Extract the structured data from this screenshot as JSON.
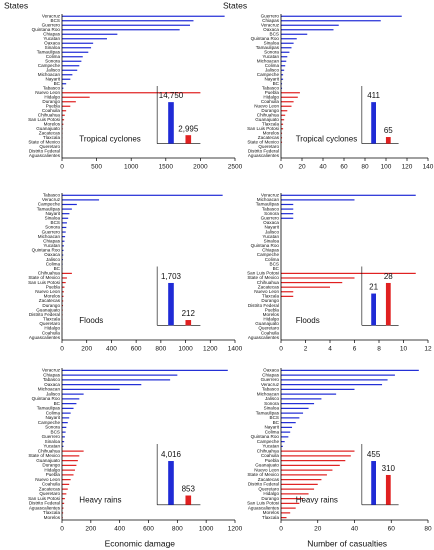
{
  "chart_data": [
    {
      "type": "bar",
      "ylabel": "States",
      "label": "Tropical cyclones",
      "categories": [
        "Veracruz",
        "BCS",
        "Guerrero",
        "Quintana Roo",
        "Chiapas",
        "Yucatan",
        "Oaxaca",
        "Sinaloa",
        "Tamaulipas",
        "Colima",
        "Sonora",
        "Campeche",
        "Jalisco",
        "Michoacan",
        "Nayarit",
        "BC",
        "Tabasco",
        "Nuevo Leon",
        "Hidalgo",
        "Durango",
        "Puebla",
        "Coahuila",
        "Chihuahua",
        "San Luis Potosi",
        "Morelos",
        "Guanajuato",
        "Zacatecas",
        "Tlaxcala",
        "State of Mexico",
        "Queretaro",
        "Distrito Federal",
        "Aguascalientes"
      ],
      "series": [
        {
          "color": "#1f2bd6",
          "values": [
            2350,
            1900,
            1850,
            1700,
            800,
            650,
            450,
            420,
            380,
            300,
            280,
            250,
            220,
            150,
            120,
            60,
            20,
            null,
            null,
            null,
            null,
            null,
            null,
            null,
            null,
            null,
            null,
            null,
            null,
            null,
            null,
            null
          ]
        },
        {
          "color": "#e02020",
          "values": [
            null,
            null,
            null,
            null,
            null,
            null,
            null,
            null,
            null,
            null,
            null,
            null,
            null,
            null,
            null,
            null,
            null,
            2000,
            400,
            200,
            120,
            60,
            40,
            30,
            20,
            10,
            8,
            5,
            5,
            3,
            2,
            1
          ]
        }
      ],
      "xlim": [
        0,
        2500
      ],
      "xticks": [
        0,
        500,
        1000,
        1500,
        2000,
        2500
      ],
      "inset": {
        "values": [
          14750,
          2995
        ],
        "value_labels": [
          "14,750",
          "2,995"
        ],
        "colors": [
          "#1f2bd6",
          "#e02020"
        ]
      }
    },
    {
      "type": "bar",
      "ylabel": "States",
      "label": "Tropical cyclones",
      "categories": [
        "Guerrero",
        "Chiapas",
        "Veracruz",
        "Oaxaca",
        "BCS",
        "Quintana Roo",
        "Sinaloa",
        "Tamaulipas",
        "Sonora",
        "Yucatan",
        "Michoacan",
        "Colima",
        "Jalisco",
        "Campeche",
        "Nayarit",
        "BC",
        "Tabasco",
        "Puebla",
        "Hidalgo",
        "Coahuila",
        "Nuevo Leon",
        "Durango",
        "Chihuahua",
        "Guanajuato",
        "Tlaxcala",
        "San Luis Potosi",
        "Morelos",
        "Zacatecas",
        "State of Mexico",
        "Queretaro",
        "Distrito Federal",
        "Aguascalientes"
      ],
      "series": [
        {
          "color": "#1f2bd6",
          "values": [
            115,
            95,
            55,
            50,
            25,
            15,
            12,
            10,
            8,
            6,
            5,
            4,
            3,
            2,
            2,
            1,
            1,
            null,
            null,
            null,
            null,
            null,
            null,
            null,
            null,
            null,
            null,
            null,
            null,
            null,
            null,
            null
          ]
        },
        {
          "color": "#e02020",
          "values": [
            null,
            null,
            null,
            null,
            null,
            null,
            null,
            null,
            null,
            null,
            null,
            null,
            null,
            null,
            null,
            null,
            null,
            18,
            16,
            12,
            10,
            6,
            4,
            3,
            2,
            2,
            1,
            1,
            1,
            0,
            0,
            0
          ]
        }
      ],
      "xlim": [
        0,
        140
      ],
      "xticks": [
        0,
        20,
        40,
        60,
        80,
        100,
        120,
        140
      ],
      "inset": {
        "values": [
          411,
          65
        ],
        "colors": [
          "#1f2bd6",
          "#e02020"
        ]
      }
    },
    {
      "type": "bar",
      "label": "Floods",
      "categories": [
        "Tabasco",
        "Veracruz",
        "Campeche",
        "Tamaulipas",
        "Nayarit",
        "Sinaloa",
        "BCS",
        "Sonora",
        "Guerrero",
        "Michoacan",
        "Chiapas",
        "Yucatan",
        "Quintana Roo",
        "Oaxaca",
        "Jalisco",
        "Colima",
        "BC",
        "Chihuahua",
        "State of Mexico",
        "San Luis Potosi",
        "Puebla",
        "Nuevo Leon",
        "Morelos",
        "Zacatecas",
        "Durango",
        "Guanajuato",
        "Distrito Federal",
        "Tlaxcala",
        "Queretaro",
        "Hidalgo",
        "Coahuila",
        "Aguascalientes"
      ],
      "series": [
        {
          "color": "#1f2bd6",
          "values": [
            1300,
            300,
            120,
            80,
            60,
            50,
            40,
            35,
            30,
            25,
            20,
            15,
            12,
            10,
            8,
            5,
            3,
            null,
            null,
            null,
            null,
            null,
            null,
            null,
            null,
            null,
            null,
            null,
            null,
            null,
            null,
            null
          ]
        },
        {
          "color": "#e02020",
          "values": [
            null,
            null,
            null,
            null,
            null,
            null,
            null,
            null,
            null,
            null,
            null,
            null,
            null,
            null,
            null,
            null,
            null,
            80,
            40,
            30,
            20,
            15,
            12,
            10,
            8,
            6,
            5,
            4,
            3,
            2,
            1,
            1
          ]
        }
      ],
      "xlim": [
        0,
        1400
      ],
      "xticks": [
        0,
        200,
        400,
        600,
        800,
        1000,
        1200,
        1400
      ],
      "inset": {
        "values": [
          1703,
          212
        ],
        "value_labels": [
          "1,703",
          "212"
        ],
        "colors": [
          "#1f2bd6",
          "#e02020"
        ]
      }
    },
    {
      "type": "bar",
      "label": "Floods",
      "categories": [
        "Veracruz",
        "Michoacan",
        "Tamaulipas",
        "Tabasco",
        "Sonora",
        "Guerrero",
        "Oaxaca",
        "Nayarit",
        "Jalisco",
        "Yucatan",
        "Sinaloa",
        "Quintana Roo",
        "Chiapas",
        "Campeche",
        "Colima",
        "BCS",
        "BC",
        "San Luis Potosi",
        "State of Mexico",
        "Chihuahua",
        "Zacatecas",
        "Nuevo Leon",
        "Tlaxcala",
        "Durango",
        "Distrito Federal",
        "Puebla",
        "Morelos",
        "Hidalgo",
        "Guanajuato",
        "Queretaro",
        "Coahuila",
        "Aguascalientes"
      ],
      "series": [
        {
          "color": "#1f2bd6",
          "values": [
            11,
            6,
            1,
            1,
            1,
            1,
            0,
            0,
            0,
            0,
            0,
            0,
            0,
            0,
            0,
            0,
            0,
            null,
            null,
            null,
            null,
            null,
            null,
            null,
            null,
            null,
            null,
            null,
            null,
            null,
            null,
            null
          ]
        },
        {
          "color": "#e02020",
          "values": [
            null,
            null,
            null,
            null,
            null,
            null,
            null,
            null,
            null,
            null,
            null,
            null,
            null,
            null,
            null,
            null,
            null,
            11,
            6,
            5,
            4,
            1,
            1,
            0,
            0,
            0,
            0,
            0,
            0,
            0,
            0,
            0
          ]
        }
      ],
      "xlim": [
        0,
        12
      ],
      "xticks": [
        0,
        2,
        4,
        6,
        8,
        10,
        12
      ],
      "inset": {
        "values": [
          21,
          28
        ],
        "colors": [
          "#1f2bd6",
          "#e02020"
        ]
      }
    },
    {
      "type": "bar",
      "label": "Heavy rains",
      "xlabel": "Economic damage",
      "categories": [
        "Veracruz",
        "Chiapas",
        "Tabasco",
        "Oaxaca",
        "Michoacan",
        "Jalisco",
        "Quintana Roo",
        "BC",
        "Tamaulipas",
        "Colima",
        "Nayarit",
        "Campeche",
        "Sonora",
        "BCS",
        "Guerrero",
        "Sinaloa",
        "Yucatan",
        "Chihuahua",
        "State of Mexico",
        "Guanajuato",
        "Durango",
        "Hidalgo",
        "Puebla",
        "Nuevo Leon",
        "Coahuila",
        "Zacatecas",
        "Queretaro",
        "San Luis Potosi",
        "Distrito Federal",
        "Aguascalientes",
        "Tlaxcala",
        "Morelos"
      ],
      "series": [
        {
          "color": "#1f2bd6",
          "values": [
            1150,
            800,
            750,
            550,
            400,
            150,
            120,
            100,
            80,
            60,
            50,
            40,
            30,
            25,
            20,
            15,
            10,
            null,
            null,
            null,
            null,
            null,
            null,
            null,
            null,
            null,
            null,
            null,
            null,
            null,
            null,
            null
          ]
        },
        {
          "color": "#e02020",
          "values": [
            null,
            null,
            null,
            null,
            null,
            null,
            null,
            null,
            null,
            null,
            null,
            null,
            null,
            null,
            null,
            null,
            null,
            150,
            120,
            110,
            100,
            90,
            80,
            60,
            50,
            40,
            30,
            20,
            15,
            10,
            8,
            5
          ]
        }
      ],
      "xlim": [
        0,
        1200
      ],
      "xticks": [
        0,
        200,
        400,
        600,
        800,
        1000,
        1200
      ],
      "inset": {
        "values": [
          4016,
          853
        ],
        "value_labels": [
          "4,016",
          "853"
        ],
        "colors": [
          "#1f2bd6",
          "#e02020"
        ]
      }
    },
    {
      "type": "bar",
      "label": "Heavy rains",
      "xlabel": "Number of casualties",
      "categories": [
        "Oaxaca",
        "Chiapas",
        "Guerrero",
        "Veracruz",
        "Tabasco",
        "Michoacan",
        "Jalisco",
        "Sonora",
        "Sinaloa",
        "Tamaulipas",
        "BCS",
        "BC",
        "Nayarit",
        "Colima",
        "Quintana Roo",
        "Campeche",
        "Yucatan",
        "Chihuahua",
        "Coahuila",
        "Puebla",
        "Guanajuato",
        "Nuevo Leon",
        "State of Mexico",
        "Zacatecas",
        "Distrito Federal",
        "Queretaro",
        "Hidalgo",
        "Durango",
        "San Luis Potosi",
        "Aguascalientes",
        "Morelos",
        "Tlaxcala"
      ],
      "series": [
        {
          "color": "#1f2bd6",
          "values": [
            75,
            62,
            58,
            55,
            40,
            30,
            22,
            18,
            15,
            12,
            10,
            8,
            6,
            5,
            4,
            2,
            1,
            null,
            null,
            null,
            null,
            null,
            null,
            null,
            null,
            null,
            null,
            null,
            null,
            null,
            null,
            null
          ]
        },
        {
          "color": "#e02020",
          "values": [
            null,
            null,
            null,
            null,
            null,
            null,
            null,
            null,
            null,
            null,
            null,
            null,
            null,
            null,
            null,
            null,
            null,
            40,
            38,
            35,
            32,
            28,
            25,
            22,
            20,
            18,
            15,
            12,
            10,
            8,
            5,
            3
          ]
        }
      ],
      "xlim": [
        0,
        80
      ],
      "xticks": [
        0,
        20,
        40,
        60,
        80
      ],
      "inset": {
        "values": [
          455,
          310
        ],
        "colors": [
          "#1f2bd6",
          "#e02020"
        ]
      }
    }
  ]
}
